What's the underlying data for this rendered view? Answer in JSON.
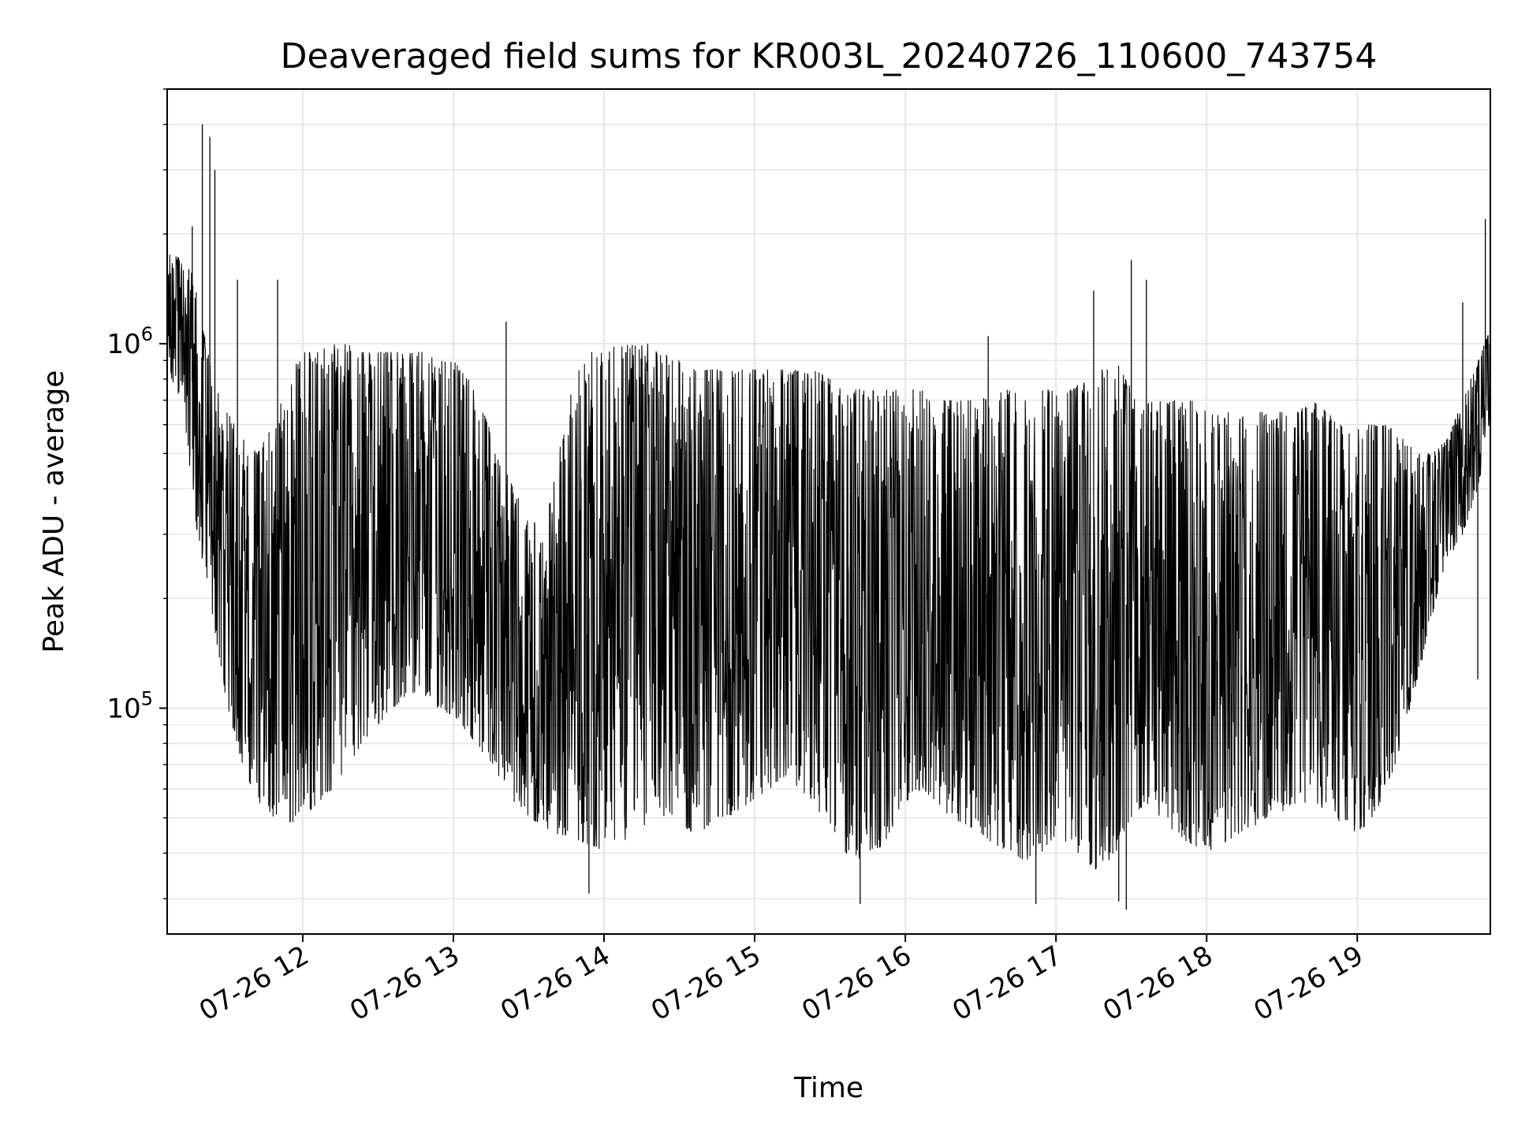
{
  "chart_data": {
    "type": "line",
    "title": "Deaveraged field sums for KR003L_20240726_110600_743754",
    "xlabel": "Time",
    "ylabel": "Peak ADU - average",
    "y_scale": "log",
    "ylim": [
      24000,
      5000000
    ],
    "xlim": [
      "2024-07-26 11:06",
      "2024-07-26 19:53"
    ],
    "grid": true,
    "line_color": "#000000",
    "grid_color": "#e6e6e6",
    "x_ticks": [
      {
        "t": "2024-07-26 12:00",
        "label": "07-26 12"
      },
      {
        "t": "2024-07-26 13:00",
        "label": "07-26 13"
      },
      {
        "t": "2024-07-26 14:00",
        "label": "07-26 14"
      },
      {
        "t": "2024-07-26 15:00",
        "label": "07-26 15"
      },
      {
        "t": "2024-07-26 16:00",
        "label": "07-26 16"
      },
      {
        "t": "2024-07-26 17:00",
        "label": "07-26 17"
      },
      {
        "t": "2024-07-26 18:00",
        "label": "07-26 18"
      },
      {
        "t": "2024-07-26 19:00",
        "label": "07-26 19"
      }
    ],
    "y_ticks": [
      {
        "value": 100000,
        "base": "10",
        "exp": "5"
      },
      {
        "value": 1000000,
        "base": "10",
        "exp": "6"
      }
    ],
    "series": [
      {
        "x": [
          "2024-07-26 11:06",
          "2024-07-26 11:12",
          "2024-07-26 11:18",
          "2024-07-26 11:24",
          "2024-07-26 11:30",
          "2024-07-26 11:36",
          "2024-07-26 11:42",
          "2024-07-26 11:48",
          "2024-07-26 11:54",
          "2024-07-26 12:00",
          "2024-07-26 12:06",
          "2024-07-26 12:12",
          "2024-07-26 12:18",
          "2024-07-26 12:24",
          "2024-07-26 12:30",
          "2024-07-26 12:36",
          "2024-07-26 12:42",
          "2024-07-26 12:48",
          "2024-07-26 12:54",
          "2024-07-26 13:00",
          "2024-07-26 13:06",
          "2024-07-26 13:12",
          "2024-07-26 13:18",
          "2024-07-26 13:24",
          "2024-07-26 13:30",
          "2024-07-26 13:36",
          "2024-07-26 13:42",
          "2024-07-26 13:48",
          "2024-07-26 13:54",
          "2024-07-26 14:00",
          "2024-07-26 14:06",
          "2024-07-26 14:12",
          "2024-07-26 14:18",
          "2024-07-26 14:24",
          "2024-07-26 14:30",
          "2024-07-26 14:36",
          "2024-07-26 14:42",
          "2024-07-26 14:48",
          "2024-07-26 14:54",
          "2024-07-26 15:00",
          "2024-07-26 15:06",
          "2024-07-26 15:12",
          "2024-07-26 15:18",
          "2024-07-26 15:24",
          "2024-07-26 15:30",
          "2024-07-26 15:36",
          "2024-07-26 15:42",
          "2024-07-26 15:48",
          "2024-07-26 15:54",
          "2024-07-26 16:00",
          "2024-07-26 16:06",
          "2024-07-26 16:12",
          "2024-07-26 16:18",
          "2024-07-26 16:24",
          "2024-07-26 16:30",
          "2024-07-26 16:36",
          "2024-07-26 16:42",
          "2024-07-26 16:48",
          "2024-07-26 16:54",
          "2024-07-26 17:00",
          "2024-07-26 17:06",
          "2024-07-26 17:12",
          "2024-07-26 17:18",
          "2024-07-26 17:24",
          "2024-07-26 17:30",
          "2024-07-26 17:36",
          "2024-07-26 17:42",
          "2024-07-26 17:48",
          "2024-07-26 17:54",
          "2024-07-26 18:00",
          "2024-07-26 18:06",
          "2024-07-26 18:12",
          "2024-07-26 18:18",
          "2024-07-26 18:24",
          "2024-07-26 18:30",
          "2024-07-26 18:36",
          "2024-07-26 18:42",
          "2024-07-26 18:48",
          "2024-07-26 18:54",
          "2024-07-26 19:00",
          "2024-07-26 19:06",
          "2024-07-26 19:12",
          "2024-07-26 19:18",
          "2024-07-26 19:24",
          "2024-07-26 19:30",
          "2024-07-26 19:36",
          "2024-07-26 19:42",
          "2024-07-26 19:48",
          "2024-07-26 19:53"
        ],
        "y_low": [
          800000,
          700000,
          300000,
          180000,
          100000,
          70000,
          55000,
          50000,
          48000,
          50000,
          55000,
          60000,
          70000,
          80000,
          90000,
          100000,
          110000,
          105000,
          100000,
          95000,
          85000,
          75000,
          65000,
          55000,
          50000,
          47000,
          45000,
          44000,
          42000,
          40000,
          42000,
          45000,
          48000,
          50000,
          48000,
          45000,
          47000,
          50000,
          52000,
          55000,
          60000,
          65000,
          60000,
          55000,
          45000,
          40000,
          38000,
          40000,
          45000,
          55000,
          60000,
          55000,
          50000,
          48000,
          45000,
          42000,
          40000,
          38000,
          40000,
          45000,
          42000,
          38000,
          35000,
          40000,
          50000,
          55000,
          50000,
          45000,
          42000,
          40000,
          42000,
          45000,
          47000,
          50000,
          52000,
          55000,
          55000,
          52000,
          48000,
          45000,
          50000,
          60000,
          80000,
          120000,
          180000,
          250000,
          300000,
          400000,
          600000
        ],
        "y_high": [
          1800000,
          1700000,
          1500000,
          800000,
          650000,
          550000,
          500000,
          600000,
          800000,
          950000,
          950000,
          1000000,
          1000000,
          950000,
          950000,
          950000,
          950000,
          950000,
          900000,
          900000,
          800000,
          650000,
          500000,
          400000,
          350000,
          300000,
          500000,
          800000,
          950000,
          950000,
          1000000,
          1000000,
          1000000,
          950000,
          900000,
          850000,
          850000,
          850000,
          850000,
          850000,
          850000,
          850000,
          850000,
          850000,
          800000,
          750000,
          750000,
          750000,
          750000,
          750000,
          750000,
          700000,
          700000,
          700000,
          700000,
          750000,
          750000,
          700000,
          750000,
          750000,
          750000,
          800000,
          850000,
          900000,
          750000,
          700000,
          700000,
          700000,
          700000,
          650000,
          650000,
          650000,
          650000,
          650000,
          650000,
          650000,
          700000,
          650000,
          650000,
          600000,
          600000,
          600000,
          550000,
          500000,
          500000,
          550000,
          700000,
          900000,
          1100000
        ]
      }
    ],
    "spikes_high": [
      {
        "x": "2024-07-26 11:20",
        "y": 4000000
      },
      {
        "x": "2024-07-26 11:23",
        "y": 3700000
      },
      {
        "x": "2024-07-26 11:25",
        "y": 3000000
      },
      {
        "x": "2024-07-26 11:16",
        "y": 2100000
      },
      {
        "x": "2024-07-26 11:34",
        "y": 1500000
      },
      {
        "x": "2024-07-26 11:50",
        "y": 1500000
      },
      {
        "x": "2024-07-26 13:21",
        "y": 1150000
      },
      {
        "x": "2024-07-26 16:33",
        "y": 1050000
      },
      {
        "x": "2024-07-26 17:15",
        "y": 1400000
      },
      {
        "x": "2024-07-26 17:30",
        "y": 1700000
      },
      {
        "x": "2024-07-26 17:36",
        "y": 1500000
      },
      {
        "x": "2024-07-26 19:42",
        "y": 1300000
      },
      {
        "x": "2024-07-26 19:51",
        "y": 2200000
      }
    ],
    "spikes_low": [
      {
        "x": "2024-07-26 13:54",
        "y": 31000
      },
      {
        "x": "2024-07-26 15:42",
        "y": 29000
      },
      {
        "x": "2024-07-26 16:52",
        "y": 29000
      },
      {
        "x": "2024-07-26 17:25",
        "y": 29500
      },
      {
        "x": "2024-07-26 17:28",
        "y": 28000
      },
      {
        "x": "2024-07-26 19:48",
        "y": 120000
      }
    ]
  }
}
